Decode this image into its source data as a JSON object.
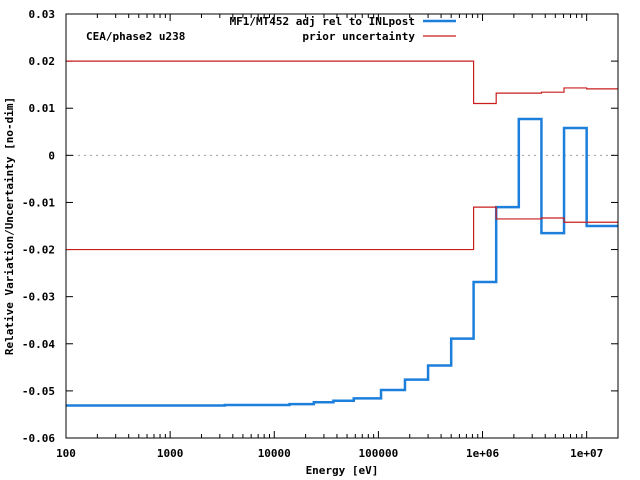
{
  "chart_data": {
    "type": "line",
    "step": true,
    "xscale": "log",
    "xlim": [
      100,
      20000000
    ],
    "ylim": [
      -0.06,
      0.03
    ],
    "xlabel": "Energy [eV]",
    "ylabel": "Relative Variation/Uncertainty [no-dim]",
    "annotation": "CEA/phase2 u238",
    "legend_position": "top-right",
    "grid": false,
    "zero_line": true,
    "x_ticks": [
      {
        "value": 100,
        "label": "100"
      },
      {
        "value": 1000,
        "label": "1000"
      },
      {
        "value": 10000,
        "label": "10000"
      },
      {
        "value": 100000,
        "label": "100000"
      },
      {
        "value": 1000000,
        "label": "1e+06"
      },
      {
        "value": 10000000,
        "label": "1e+07"
      }
    ],
    "y_ticks": [
      {
        "value": 0.03,
        "label": "0.03"
      },
      {
        "value": 0.02,
        "label": "0.02"
      },
      {
        "value": 0.01,
        "label": "0.01"
      },
      {
        "value": 0,
        "label": "0"
      },
      {
        "value": -0.01,
        "label": "-0.01"
      },
      {
        "value": -0.02,
        "label": "-0.02"
      },
      {
        "value": -0.03,
        "label": "-0.03"
      },
      {
        "value": -0.04,
        "label": "-0.04"
      },
      {
        "value": -0.05,
        "label": "-0.05"
      },
      {
        "value": -0.06,
        "label": "-0.06"
      }
    ],
    "series": [
      {
        "name": "MF1/MT452 adj rel to INLpost",
        "color": "#1c7fdb",
        "width": 2.5,
        "x": [
          100,
          3354,
          14000,
          24000,
          37000,
          58000,
          106000,
          180000,
          300000,
          500000,
          821000,
          1353000,
          2231000,
          3679000,
          6065000,
          10000000,
          19640000
        ],
        "y": [
          -0.0531,
          -0.053,
          -0.0528,
          -0.0524,
          -0.0521,
          -0.0516,
          -0.0498,
          -0.0476,
          -0.0446,
          -0.0389,
          -0.0269,
          -0.011,
          0.0077,
          -0.0165,
          0.0058,
          -0.015,
          -0.015
        ]
      },
      {
        "name": "prior uncertainty",
        "color": "#c81e1e",
        "width": 1.2,
        "x": [
          100,
          821000,
          1353000,
          3679000,
          6065000,
          10000000,
          19640000
        ],
        "y": [
          0.02,
          0.011,
          0.0132,
          0.0134,
          0.0143,
          0.0141,
          0.0141
        ]
      },
      {
        "color": "#c81e1e",
        "width": 1.2,
        "x": [
          100,
          821000,
          1353000,
          3679000,
          6065000,
          10000000,
          19640000
        ],
        "y": [
          -0.02,
          -0.011,
          -0.0135,
          -0.0133,
          -0.0142,
          -0.0142,
          -0.0142
        ]
      }
    ]
  }
}
